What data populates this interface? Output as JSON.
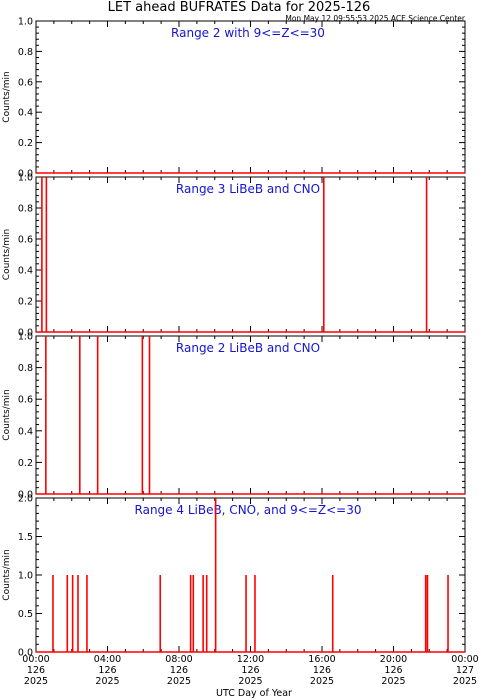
{
  "title": "LET ahead BUFRATES Data for 2025-126",
  "timestamp": "Mon May 12 09:55:53 2025 ACE Science Center",
  "xlabel": "UTC Day of Year",
  "colors": {
    "data": "#ff0000",
    "panel_title": "#1515d0",
    "axes": "#000000"
  },
  "x_ticks": [
    {
      "hours": 0,
      "time": "00:00",
      "doy": "126",
      "year": "2025"
    },
    {
      "hours": 4,
      "time": "04:00",
      "doy": "126",
      "year": "2025"
    },
    {
      "hours": 8,
      "time": "08:00",
      "doy": "126",
      "year": "2025"
    },
    {
      "hours": 12,
      "time": "12:00",
      "doy": "126",
      "year": "2025"
    },
    {
      "hours": 16,
      "time": "16:00",
      "doy": "126",
      "year": "2025"
    },
    {
      "hours": 20,
      "time": "20:00",
      "doy": "126",
      "year": "2025"
    },
    {
      "hours": 24,
      "time": "00:00",
      "doy": "127",
      "year": "2025"
    }
  ],
  "chart_data": [
    {
      "type": "line",
      "title": "Range 2 with 9<=Z<=30",
      "ylabel": "Counts/min",
      "xlim": [
        0,
        24
      ],
      "ylim": [
        0,
        1
      ],
      "yticks": [
        "0.0",
        "0.2",
        "0.4",
        "0.6",
        "0.8",
        "1.0"
      ],
      "ytick_values": [
        0,
        0.2,
        0.4,
        0.6,
        0.8,
        1.0
      ],
      "spikes": []
    },
    {
      "type": "line",
      "title": "Range 3 LiBeB and CNO",
      "ylabel": "Counts/min",
      "xlim": [
        0,
        24
      ],
      "ylim": [
        0,
        1
      ],
      "yticks": [
        "0.0",
        "0.2",
        "0.4",
        "0.6",
        "0.8",
        "1.0"
      ],
      "ytick_values": [
        0,
        0.2,
        0.4,
        0.6,
        0.8,
        1.0
      ],
      "spikes": [
        {
          "x": 0.33,
          "y": 1
        },
        {
          "x": 0.58,
          "y": 1
        },
        {
          "x": 16.1,
          "y": 1
        },
        {
          "x": 21.85,
          "y": 1
        }
      ]
    },
    {
      "type": "line",
      "title": "Range 2 LiBeB and CNO",
      "ylabel": "Counts/min",
      "xlim": [
        0,
        24
      ],
      "ylim": [
        0,
        1
      ],
      "yticks": [
        "0.0",
        "0.2",
        "0.4",
        "0.6",
        "0.8",
        "1.0"
      ],
      "ytick_values": [
        0,
        0.2,
        0.4,
        0.6,
        0.8,
        1.0
      ],
      "spikes": [
        {
          "x": 0.55,
          "y": 1
        },
        {
          "x": 2.45,
          "y": 1
        },
        {
          "x": 3.45,
          "y": 1
        },
        {
          "x": 5.95,
          "y": 1
        },
        {
          "x": 6.35,
          "y": 1
        }
      ]
    },
    {
      "type": "line",
      "title": "Range 4 LiBeB, CNO, and 9<=Z<=30",
      "ylabel": "Counts/min",
      "xlim": [
        0,
        24
      ],
      "ylim": [
        0,
        2
      ],
      "yticks": [
        "0.0",
        "0.5",
        "1.0",
        "1.5",
        "2.0"
      ],
      "ytick_values": [
        0,
        0.5,
        1.0,
        1.5,
        2.0
      ],
      "spikes": [
        {
          "x": 0.95,
          "y": 1
        },
        {
          "x": 1.75,
          "y": 1
        },
        {
          "x": 2.05,
          "y": 1
        },
        {
          "x": 2.35,
          "y": 1
        },
        {
          "x": 2.85,
          "y": 1
        },
        {
          "x": 6.95,
          "y": 1
        },
        {
          "x": 8.65,
          "y": 1
        },
        {
          "x": 8.8,
          "y": 1
        },
        {
          "x": 9.35,
          "y": 1
        },
        {
          "x": 9.55,
          "y": 1
        },
        {
          "x": 10.05,
          "y": 2
        },
        {
          "x": 11.75,
          "y": 1
        },
        {
          "x": 12.25,
          "y": 1
        },
        {
          "x": 16.6,
          "y": 1
        },
        {
          "x": 21.8,
          "y": 1
        },
        {
          "x": 21.9,
          "y": 1
        },
        {
          "x": 23.05,
          "y": 1
        }
      ]
    }
  ]
}
